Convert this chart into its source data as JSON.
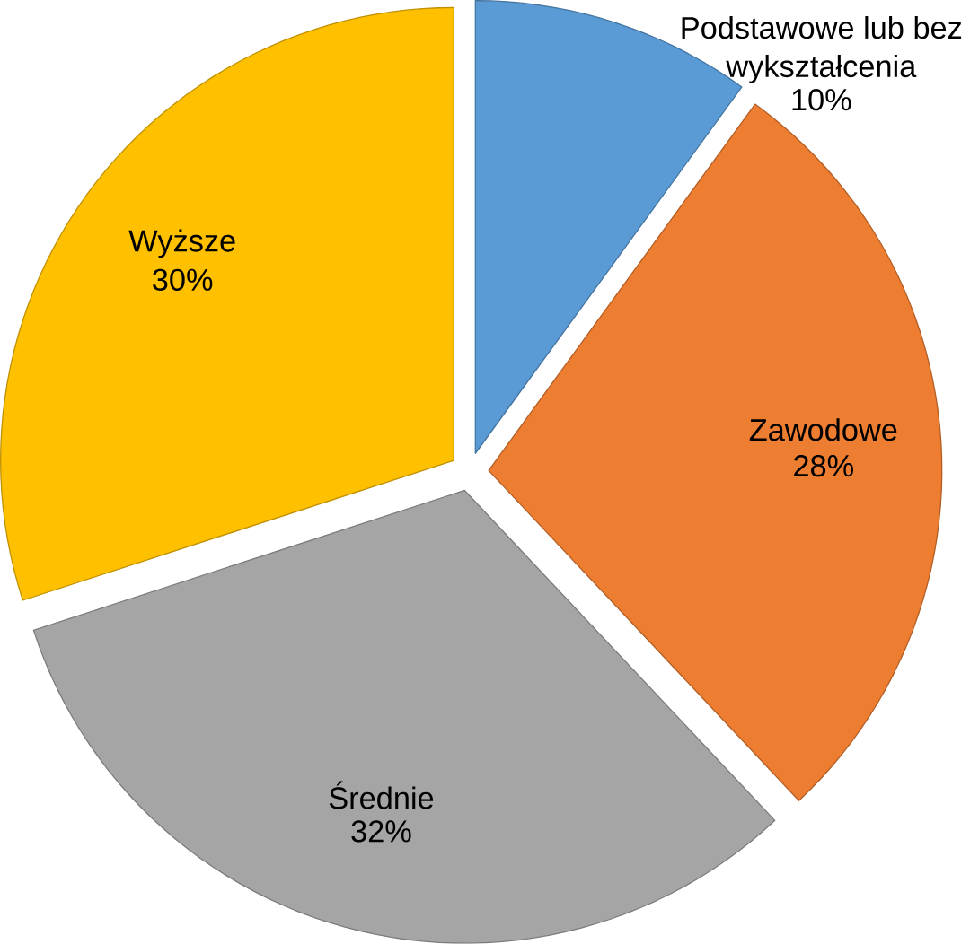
{
  "chart_data": {
    "type": "pie",
    "categories": [
      "Podstawowe lub bez wykształcenia",
      "Zawodowe",
      "Średnie",
      "Wyższe"
    ],
    "values": [
      10,
      28,
      32,
      30
    ],
    "value_labels": [
      "10%",
      "28%",
      "32%",
      "30%"
    ],
    "colors": [
      "#5b9bd5",
      "#ed7d31",
      "#a5a5a5",
      "#ffc000"
    ]
  }
}
